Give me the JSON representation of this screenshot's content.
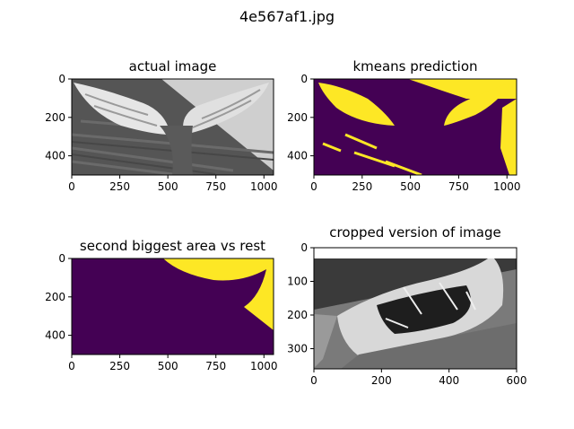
{
  "figure": {
    "title": "4e567af1.jpg"
  },
  "colors": {
    "viridis_dark": "#440154",
    "viridis_yellow": "#fde725",
    "gray_light": "#d8d8d8",
    "gray_mid": "#8a8a8a",
    "gray_dark": "#3a3a3a",
    "axes": "#000000",
    "background": "#ffffff"
  },
  "chart_data": [
    {
      "type": "heatmap",
      "title": "actual image",
      "colormap": "gray",
      "content": "grayscale photo of a whale tail fluke above water",
      "xlim": [
        0,
        1050
      ],
      "ylim": [
        500,
        0
      ],
      "xticks": [
        0,
        250,
        500,
        750,
        1000
      ],
      "yticks": [
        0,
        200,
        400
      ]
    },
    {
      "type": "heatmap",
      "title": "kmeans prediction",
      "colormap": "viridis",
      "content": "two-cluster kmeans label map",
      "xlim": [
        0,
        1050
      ],
      "ylim": [
        500,
        0
      ],
      "xticks": [
        0,
        250,
        500,
        750,
        1000
      ],
      "yticks": [
        0,
        200,
        400
      ]
    },
    {
      "type": "heatmap",
      "title": "second biggest area vs rest",
      "colormap": "viridis",
      "content": "binary mask: one region vs rest",
      "xlim": [
        0,
        1050
      ],
      "ylim": [
        500,
        0
      ],
      "xticks": [
        0,
        250,
        500,
        750,
        1000
      ],
      "yticks": [
        0,
        200,
        400
      ]
    },
    {
      "type": "heatmap",
      "title": "cropped version of image",
      "colormap": "gray",
      "content": "cropped grayscale view of the right fluke",
      "xlim": [
        0,
        600
      ],
      "ylim": [
        360,
        0
      ],
      "xticks": [
        0,
        200,
        400,
        600
      ],
      "yticks": [
        0,
        100,
        200,
        300
      ]
    }
  ]
}
